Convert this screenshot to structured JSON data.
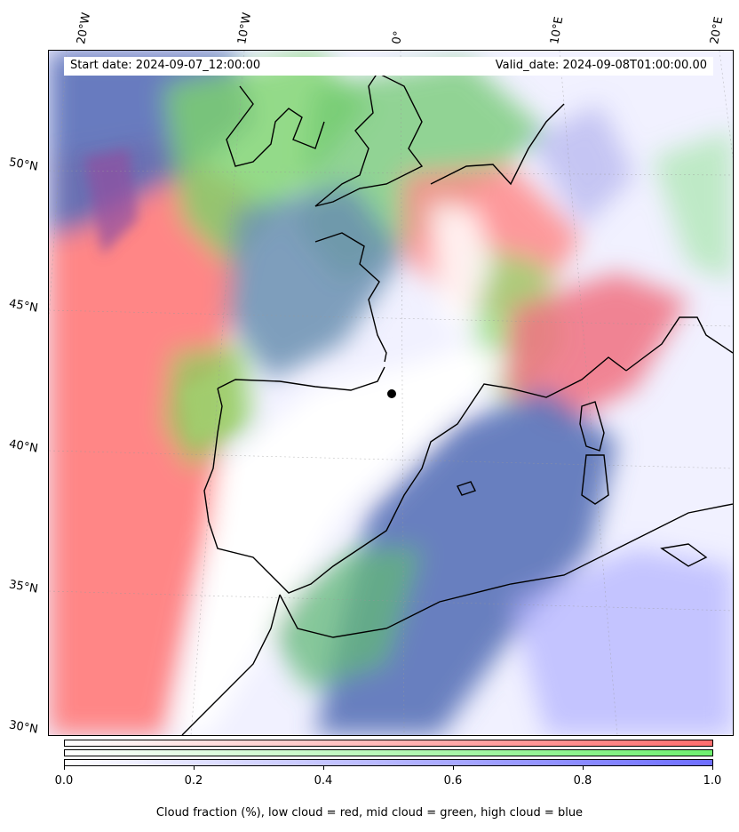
{
  "header": {
    "start_date": "Start date: 2024-09-07_12:00:00",
    "valid_date": "Valid_date: 2024-09-08T01:00:00.00"
  },
  "axes": {
    "lon_labels": [
      "20°W",
      "10°W",
      "0°",
      "10°E",
      "20°E"
    ],
    "lat_labels": [
      "50°N",
      "45°N",
      "40°N",
      "35°N",
      "30°N"
    ]
  },
  "colorbar": {
    "ticks": [
      "0.0",
      "0.2",
      "0.4",
      "0.6",
      "0.8",
      "1.0"
    ],
    "caption": "Cloud fraction (%), low cloud = red, mid cloud = green, high cloud = blue",
    "colors": {
      "low": "#ff6e6e",
      "mid": "#6ef06e",
      "high": "#6e6eff"
    }
  },
  "map": {
    "region": "Western Europe, Iberian Peninsula, Western Mediterranean",
    "marker": "black-dot-cluster"
  }
}
